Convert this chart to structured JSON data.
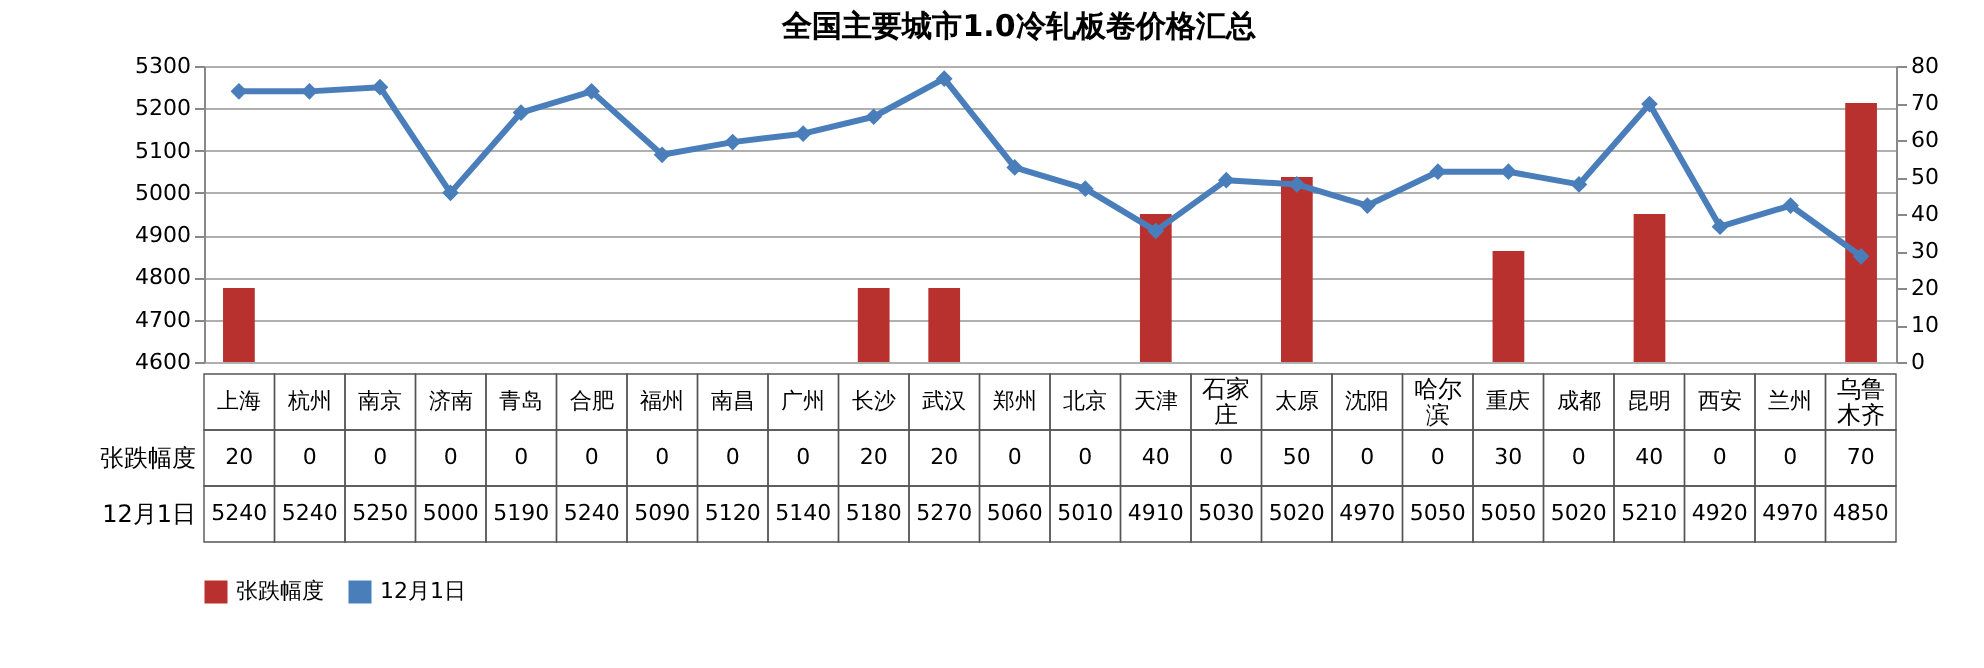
{
  "chart_data": {
    "type": "bar",
    "title": "全国主要城市1.0冷轧板卷价格汇总",
    "categories": [
      "上海",
      "杭州",
      "南京",
      "济南",
      "青岛",
      "合肥",
      "福州",
      "南昌",
      "广州",
      "长沙",
      "武汉",
      "郑州",
      "北京",
      "天津",
      "石家庄",
      "太原",
      "沈阳",
      "哈尔滨",
      "重庆",
      "成都",
      "昆明",
      "西安",
      "兰州",
      "乌鲁木齐"
    ],
    "series": [
      {
        "name": "张跌幅度",
        "axis": "y2",
        "color": "#b8312f",
        "values": [
          20,
          0,
          0,
          0,
          0,
          0,
          0,
          0,
          0,
          20,
          20,
          0,
          0,
          40,
          0,
          50,
          0,
          0,
          30,
          0,
          40,
          0,
          0,
          70
        ]
      },
      {
        "name": "12月1日",
        "type": "line",
        "color": "#4a7ebb",
        "values": [
          5240,
          5240,
          5250,
          5000,
          5190,
          5240,
          5090,
          5120,
          5140,
          5180,
          5270,
          5060,
          5010,
          4910,
          5030,
          5020,
          4970,
          5050,
          5050,
          5020,
          5210,
          4920,
          4970,
          4850
        ]
      }
    ],
    "ylim": [
      4600,
      5300
    ],
    "yticks": [
      4600,
      4700,
      4800,
      4900,
      5000,
      5100,
      5200,
      5300
    ],
    "y2lim": [
      0,
      80
    ],
    "y2ticks": [
      0,
      10,
      20,
      30,
      40,
      50,
      60,
      70,
      80
    ],
    "grid": "y",
    "legend": "bottom",
    "marker": "diamond",
    "line_style": "solid",
    "data_labels": true
  }
}
